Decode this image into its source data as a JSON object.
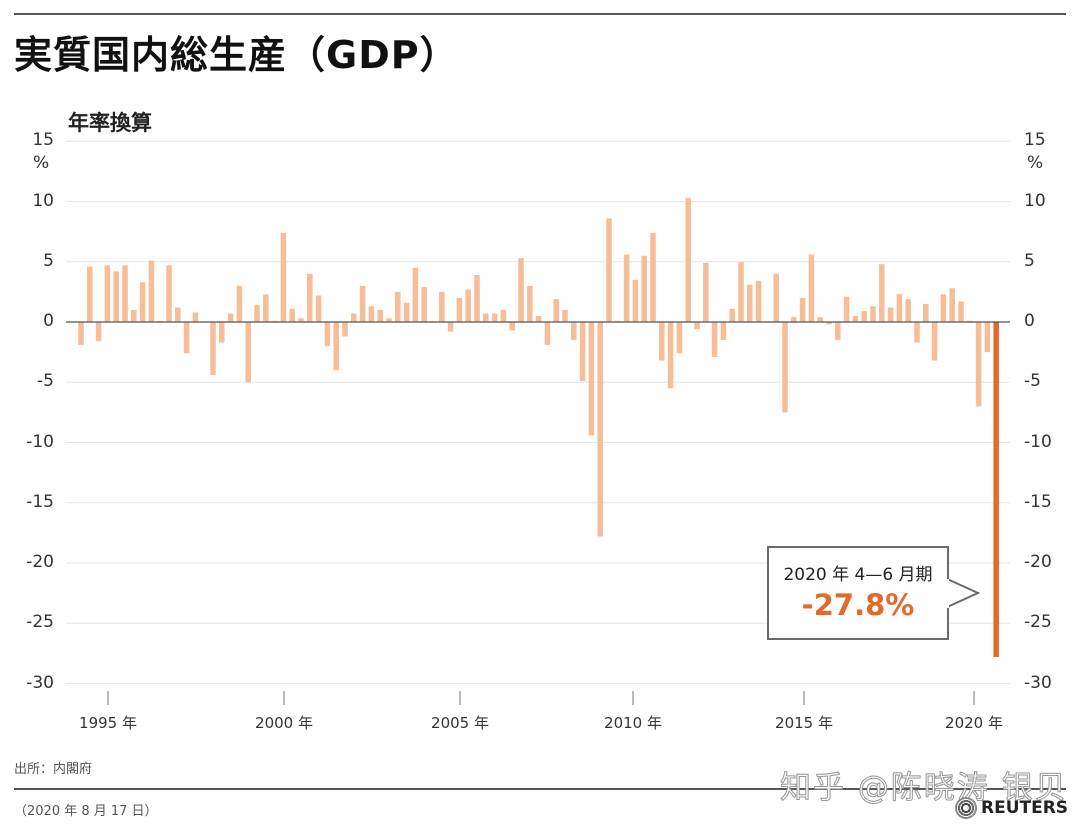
{
  "header": {
    "title": "実質国内総生産（GDP）",
    "subtitle": "年率換算"
  },
  "axes": {
    "y_unit": "%",
    "y_ticks": [
      "15",
      "10",
      "5",
      "0",
      "-5",
      "-10",
      "-15",
      "-20",
      "-25",
      "-30"
    ],
    "x_ticks": [
      "1995 年",
      "2000 年",
      "2005 年",
      "2010 年",
      "2015 年",
      "2020 年"
    ]
  },
  "callout": {
    "period": "2020 年 4—6 月期",
    "value": "-27.8%"
  },
  "footer": {
    "source": "出所：内閣府",
    "date": "（2020 年 8 月 17 日）",
    "brand": "REUTERS",
    "watermark": "知乎 @陈晓涛 银贝"
  },
  "colors": {
    "bar": "#f5bd98",
    "highlight": "#e46a2a",
    "grid": "#e6e6e6",
    "zero_line": "#555555",
    "callout_border": "#6a6a6a"
  },
  "chart_data": {
    "type": "bar",
    "title": "実質国内総生産（GDP）",
    "subtitle": "年率換算",
    "xlabel": "",
    "ylabel": "%",
    "ylim": [
      -30,
      15
    ],
    "y_ticks": [
      15,
      10,
      5,
      0,
      -5,
      -10,
      -15,
      -20,
      -25,
      -30
    ],
    "grid": true,
    "legend": "none",
    "annotation": {
      "label": "2020 年 4—6 月期",
      "value": "-27.8%",
      "target": "2020Q2"
    },
    "start_quarter": "1994Q2",
    "end_quarter": "2020Q2",
    "categories": [
      "1994Q2",
      "1994Q3",
      "1994Q4",
      "1995Q1",
      "1995Q2",
      "1995Q3",
      "1995Q4",
      "1996Q1",
      "1996Q2",
      "1996Q3",
      "1996Q4",
      "1997Q1",
      "1997Q2",
      "1997Q3",
      "1997Q4",
      "1998Q1",
      "1998Q2",
      "1998Q3",
      "1998Q4",
      "1999Q1",
      "1999Q2",
      "1999Q3",
      "1999Q4",
      "2000Q1",
      "2000Q2",
      "2000Q3",
      "2000Q4",
      "2001Q1",
      "2001Q2",
      "2001Q3",
      "2001Q4",
      "2002Q1",
      "2002Q2",
      "2002Q3",
      "2002Q4",
      "2003Q1",
      "2003Q2",
      "2003Q3",
      "2003Q4",
      "2004Q1",
      "2004Q2",
      "2004Q3",
      "2004Q4",
      "2005Q1",
      "2005Q2",
      "2005Q3",
      "2005Q4",
      "2006Q1",
      "2006Q2",
      "2006Q3",
      "2006Q4",
      "2007Q1",
      "2007Q2",
      "2007Q3",
      "2007Q4",
      "2008Q1",
      "2008Q2",
      "2008Q3",
      "2008Q4",
      "2009Q1",
      "2009Q2",
      "2009Q3",
      "2009Q4",
      "2010Q1",
      "2010Q2",
      "2010Q3",
      "2010Q4",
      "2011Q1",
      "2011Q2",
      "2011Q3",
      "2011Q4",
      "2012Q1",
      "2012Q2",
      "2012Q3",
      "2012Q4",
      "2013Q1",
      "2013Q2",
      "2013Q3",
      "2013Q4",
      "2014Q1",
      "2014Q2",
      "2014Q3",
      "2014Q4",
      "2015Q1",
      "2015Q2",
      "2015Q3",
      "2015Q4",
      "2016Q1",
      "2016Q2",
      "2016Q3",
      "2016Q4",
      "2017Q1",
      "2017Q2",
      "2017Q3",
      "2017Q4",
      "2018Q1",
      "2018Q2",
      "2018Q3",
      "2018Q4",
      "2019Q1",
      "2019Q2",
      "2019Q3",
      "2019Q4",
      "2020Q1",
      "2020Q2"
    ],
    "values": [
      -1.9,
      4.6,
      -1.6,
      4.7,
      4.2,
      4.7,
      1.0,
      3.3,
      5.1,
      0.1,
      4.7,
      1.2,
      -2.6,
      0.8,
      0.0,
      -4.4,
      -1.7,
      0.7,
      3.0,
      -5.0,
      1.4,
      2.3,
      0.1,
      7.4,
      1.1,
      0.3,
      4.0,
      2.2,
      -2.0,
      -4.0,
      -1.2,
      0.7,
      3.0,
      1.3,
      1.0,
      0.3,
      2.5,
      1.6,
      4.5,
      2.9,
      0.0,
      2.5,
      -0.8,
      2.0,
      2.7,
      3.9,
      0.7,
      0.7,
      1.0,
      -0.7,
      5.3,
      3.0,
      0.5,
      -1.9,
      1.9,
      1.0,
      -1.5,
      -4.9,
      -9.4,
      -17.8,
      8.6,
      0.1,
      5.6,
      3.5,
      5.5,
      7.4,
      -3.2,
      -5.5,
      -2.6,
      10.3,
      -0.6,
      4.9,
      -2.9,
      -1.5,
      1.1,
      5.0,
      3.1,
      3.4,
      0.0,
      4.0,
      -7.5,
      0.4,
      2.0,
      5.6,
      0.4,
      -0.2,
      -1.5,
      2.1,
      0.5,
      0.9,
      1.3,
      4.8,
      1.2,
      2.3,
      1.9,
      -1.7,
      1.5,
      -3.2,
      2.3,
      2.8,
      1.7,
      0.1,
      -7.0,
      -2.5,
      -27.8
    ],
    "highlight_index": 104
  }
}
